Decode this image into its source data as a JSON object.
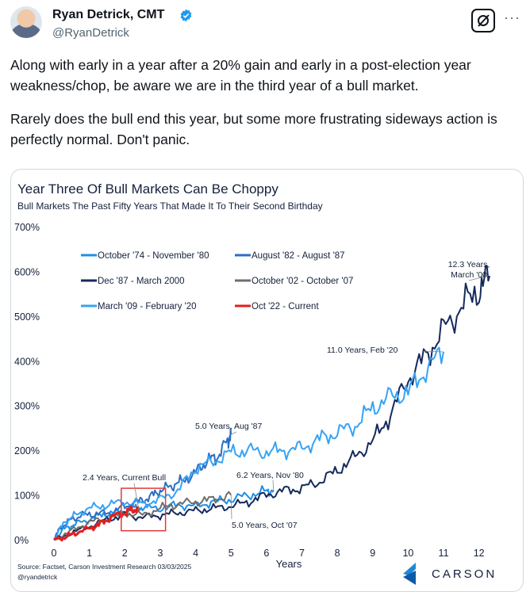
{
  "tweet": {
    "author_name": "Ryan Detrick, CMT",
    "handle": "@RyanDetrick",
    "paragraph1": "Along with early in a year after a 20% gain and early in a post-election year weakness/chop, be aware we are in the third year of a bull market.",
    "paragraph2": "Rarely does the bull end this year, but some more frustrating sideways action is perfectly normal. Don't panic.",
    "more_icon": "more-dots-icon",
    "grok_icon": "grok-icon"
  },
  "chart_data": {
    "type": "line",
    "title": "Year Three Of Bull Markets Can Be Choppy",
    "subtitle": "Bull Markets The Past Fifty Years That Made It To Their Second Birthday",
    "xlabel": "Years",
    "ylabel": "",
    "xlim": [
      0,
      12.5
    ],
    "ylim": [
      0,
      700
    ],
    "x_ticks": [
      "0",
      "1",
      "2",
      "3",
      "4",
      "5",
      "6",
      "7",
      "8",
      "9",
      "10",
      "11",
      "12"
    ],
    "y_ticks": [
      "0%",
      "100%",
      "200%",
      "300%",
      "400%",
      "500%",
      "600%",
      "700%"
    ],
    "legend_position": "top-left",
    "series": [
      {
        "name": "October '74 - November '80",
        "color": "#1f8fe5",
        "points": [
          [
            0,
            0
          ],
          [
            0.3,
            25
          ],
          [
            0.6,
            35
          ],
          [
            1,
            45
          ],
          [
            1.4,
            58
          ],
          [
            1.8,
            60
          ],
          [
            2.2,
            70
          ],
          [
            2.5,
            72
          ],
          [
            3,
            70
          ],
          [
            3.5,
            78
          ],
          [
            4,
            75
          ],
          [
            4.5,
            85
          ],
          [
            5,
            90
          ],
          [
            5.5,
            100
          ],
          [
            6,
            108
          ],
          [
            6.2,
            110
          ]
        ]
      },
      {
        "name": "August '82 - August '87",
        "color": "#2d6fc1",
        "points": [
          [
            0,
            0
          ],
          [
            0.2,
            30
          ],
          [
            0.5,
            45
          ],
          [
            0.8,
            55
          ],
          [
            1.2,
            58
          ],
          [
            1.6,
            60
          ],
          [
            2,
            75
          ],
          [
            2.4,
            85
          ],
          [
            2.7,
            95
          ],
          [
            3,
            110
          ],
          [
            3.3,
            120
          ],
          [
            3.6,
            130
          ],
          [
            4,
            150
          ],
          [
            4.3,
            175
          ],
          [
            4.6,
            185
          ],
          [
            4.9,
            220
          ],
          [
            5,
            235
          ]
        ]
      },
      {
        "name": "Dec '87 - March 2000",
        "color": "#152a5c",
        "points": [
          [
            0,
            0
          ],
          [
            0.5,
            15
          ],
          [
            1,
            30
          ],
          [
            1.5,
            45
          ],
          [
            2,
            55
          ],
          [
            2.5,
            50
          ],
          [
            3,
            55
          ],
          [
            3.5,
            60
          ],
          [
            4,
            65
          ],
          [
            4.5,
            70
          ],
          [
            5,
            75
          ],
          [
            5.5,
            85
          ],
          [
            6,
            100
          ],
          [
            6.5,
            110
          ],
          [
            7,
            115
          ],
          [
            7.5,
            130
          ],
          [
            8,
            155
          ],
          [
            8.5,
            185
          ],
          [
            9,
            220
          ],
          [
            9.5,
            280
          ],
          [
            10,
            360
          ],
          [
            10.5,
            410
          ],
          [
            11,
            470
          ],
          [
            11.5,
            520
          ],
          [
            12,
            560
          ],
          [
            12.3,
            590
          ]
        ]
      },
      {
        "name": "October '02 - October '07",
        "color": "#6e6e6e",
        "points": [
          [
            0,
            0
          ],
          [
            0.5,
            20
          ],
          [
            1,
            40
          ],
          [
            1.5,
            45
          ],
          [
            2,
            60
          ],
          [
            2.5,
            55
          ],
          [
            3,
            70
          ],
          [
            3.5,
            80
          ],
          [
            4,
            85
          ],
          [
            4.5,
            90
          ],
          [
            5,
            100
          ]
        ]
      },
      {
        "name": "March '09 - February '20",
        "color": "#36a3f5",
        "points": [
          [
            0,
            0
          ],
          [
            0.3,
            40
          ],
          [
            0.6,
            55
          ],
          [
            1,
            70
          ],
          [
            1.5,
            78
          ],
          [
            2,
            85
          ],
          [
            2.5,
            80
          ],
          [
            3,
            90
          ],
          [
            3.5,
            110
          ],
          [
            4,
            160
          ],
          [
            4.5,
            175
          ],
          [
            5,
            195
          ],
          [
            5.5,
            200
          ],
          [
            6,
            195
          ],
          [
            6.5,
            200
          ],
          [
            7,
            205
          ],
          [
            7.5,
            225
          ],
          [
            8,
            240
          ],
          [
            8.5,
            255
          ],
          [
            9,
            295
          ],
          [
            9.5,
            320
          ],
          [
            10,
            330
          ],
          [
            10.5,
            380
          ],
          [
            11,
            420
          ]
        ]
      },
      {
        "name": "Oct '22 - Current",
        "color": "#e21f1f",
        "points": [
          [
            0,
            0
          ],
          [
            0.3,
            5
          ],
          [
            0.6,
            15
          ],
          [
            1,
            25
          ],
          [
            1.3,
            35
          ],
          [
            1.6,
            50
          ],
          [
            2,
            60
          ],
          [
            2.2,
            68
          ],
          [
            2.4,
            65
          ]
        ]
      }
    ],
    "annotations": [
      {
        "text": "12.3 Years, March '00"
      },
      {
        "text": "11.0 Years, Feb '20"
      },
      {
        "text": "5.0 Years, Aug '87"
      },
      {
        "text": "6.2 Years, Nov '80"
      },
      {
        "text": "2.4 Years, Current Bull"
      },
      {
        "text": "5.0 Years, Oct '07"
      }
    ],
    "source": "Source: Factset, Carson Investment Research 03/03/2025",
    "credit": "@ryandetrick",
    "logo_text": "CARSON"
  }
}
